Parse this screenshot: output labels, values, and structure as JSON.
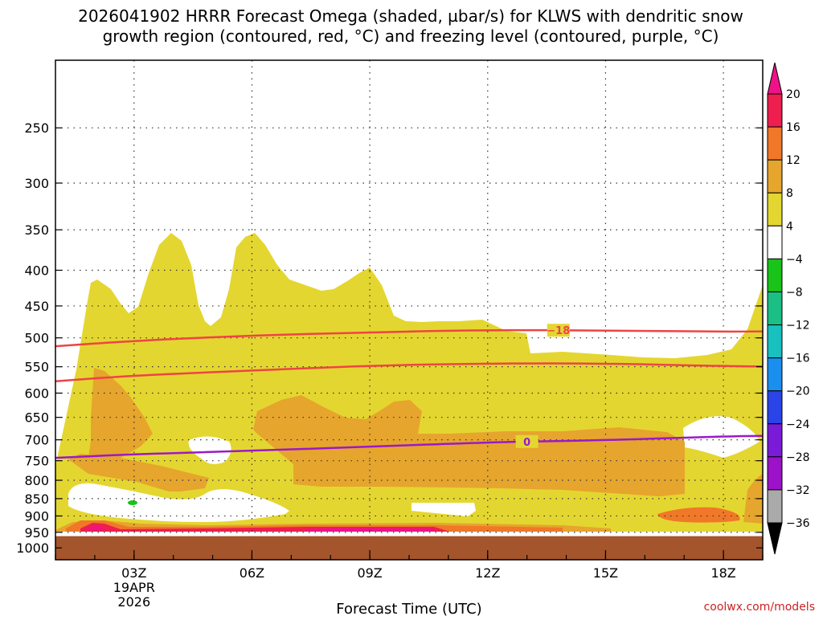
{
  "chart_data": {
    "type": "heatmap",
    "title_line1": "2026041902 HRRR Forecast Omega (shaded, µbar/s) for KLWS with dendritic snow",
    "title_line2": "growth region (contoured, red, °C) and freezing level (contoured, purple, °C)",
    "xlabel": "Forecast Time (UTC)",
    "credit": "coolwx.com/models",
    "x_range_hours": [
      1,
      19
    ],
    "x_ticks": [
      {
        "hour": 3,
        "label": "03Z"
      },
      {
        "hour": 6,
        "label": "06Z"
      },
      {
        "hour": 9,
        "label": "09Z"
      },
      {
        "hour": 12,
        "label": "12Z"
      },
      {
        "hour": 15,
        "label": "15Z"
      },
      {
        "hour": 18,
        "label": "18Z"
      }
    ],
    "x_date_label": [
      "19APR",
      "2026"
    ],
    "y_scale": "log-pressure",
    "y_range_hpa": [
      1040,
      200
    ],
    "y_ticks": [
      250,
      300,
      350,
      400,
      450,
      500,
      550,
      600,
      650,
      700,
      750,
      800,
      850,
      900,
      950,
      1000
    ],
    "grid": true,
    "ground_pressure_hpa": 962,
    "colorbar": {
      "levels": [
        "20",
        "16",
        "12",
        "8",
        "4",
        "−4",
        "−8",
        "−12",
        "−16",
        "−20",
        "−24",
        "−28",
        "−32",
        "−36"
      ],
      "colors": [
        "#ee1e4e",
        "#f07828",
        "#e6a52d",
        "#e4d630",
        "#ffffff",
        "#19c319",
        "#1bbf84",
        "#18c0c0",
        "#1a8ff0",
        "#2a44e8",
        "#7a1bd8",
        "#9b12c8",
        "#aaaaaa"
      ],
      "top_arrow_color": "#ee1288",
      "bottom_arrow_color": "#000000"
    },
    "contours": [
      {
        "label": "−18",
        "color": "#ee4444",
        "label_at_hour": 13.8,
        "points": [
          [
            1,
            514
          ],
          [
            3,
            505
          ],
          [
            6,
            496
          ],
          [
            9,
            491
          ],
          [
            12,
            487
          ],
          [
            15,
            488
          ],
          [
            18,
            490
          ],
          [
            19.8,
            489
          ]
        ]
      },
      {
        "label": "",
        "color": "#ee4444",
        "points": [
          [
            1,
            577
          ],
          [
            3,
            566
          ],
          [
            6,
            557
          ],
          [
            9,
            548
          ],
          [
            12,
            544
          ],
          [
            15,
            544
          ],
          [
            18,
            549
          ],
          [
            19.8,
            550
          ]
        ]
      },
      {
        "label": "0",
        "color": "#9b19c8",
        "label_at_hour": 13,
        "points": [
          [
            1,
            743
          ],
          [
            3,
            734
          ],
          [
            6,
            726
          ],
          [
            9,
            716
          ],
          [
            12,
            706
          ],
          [
            13,
            704
          ],
          [
            15,
            701
          ],
          [
            18,
            692
          ],
          [
            19.8,
            690
          ]
        ]
      }
    ]
  }
}
